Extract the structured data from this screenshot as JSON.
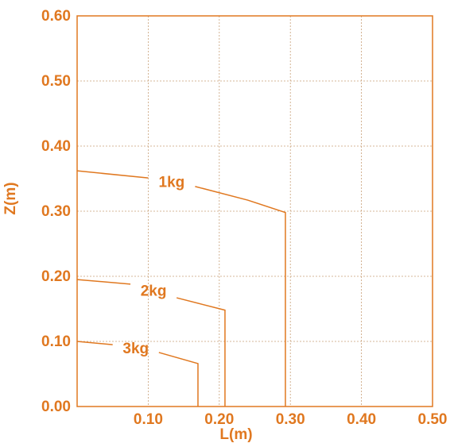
{
  "chart_data": {
    "type": "line",
    "x_label": "L(m)",
    "y_label": "Z(m)",
    "color": "#e07820",
    "grid": true,
    "xlim": [
      0,
      0.5
    ],
    "ylim": [
      0,
      0.6
    ],
    "xticks": [
      {
        "value": 0.1,
        "label": "0.10"
      },
      {
        "value": 0.2,
        "label": "0.20"
      },
      {
        "value": 0.3,
        "label": "0.30"
      },
      {
        "value": 0.4,
        "label": "0.40"
      },
      {
        "value": 0.5,
        "label": "0.50"
      }
    ],
    "yticks": [
      {
        "value": 0,
        "label": "0.00"
      },
      {
        "value": 0.1,
        "label": "0.10"
      },
      {
        "value": 0.2,
        "label": "0.20"
      },
      {
        "value": 0.3,
        "label": "0.30"
      },
      {
        "value": 0.4,
        "label": "0.40"
      },
      {
        "value": 0.5,
        "label": "0.50"
      },
      {
        "value": 0.6,
        "label": "0.60"
      }
    ],
    "series": [
      {
        "name": "1kg",
        "x": [
          0,
          0.1,
          null,
          0.166,
          0.24,
          0.293,
          0.293
        ],
        "values": [
          0.362,
          0.351,
          null,
          0.338,
          0.317,
          0.298,
          0
        ]
      },
      {
        "name": "2kg",
        "x": [
          0,
          0.075,
          null,
          0.14,
          0.208,
          0.208
        ],
        "values": [
          0.195,
          0.188,
          null,
          0.167,
          0.148,
          0
        ]
      },
      {
        "name": "3kg",
        "x": [
          0,
          0.05,
          null,
          0.115,
          0.17,
          0.17
        ],
        "values": [
          0.1,
          0.095,
          null,
          0.083,
          0.066,
          0
        ]
      }
    ]
  }
}
